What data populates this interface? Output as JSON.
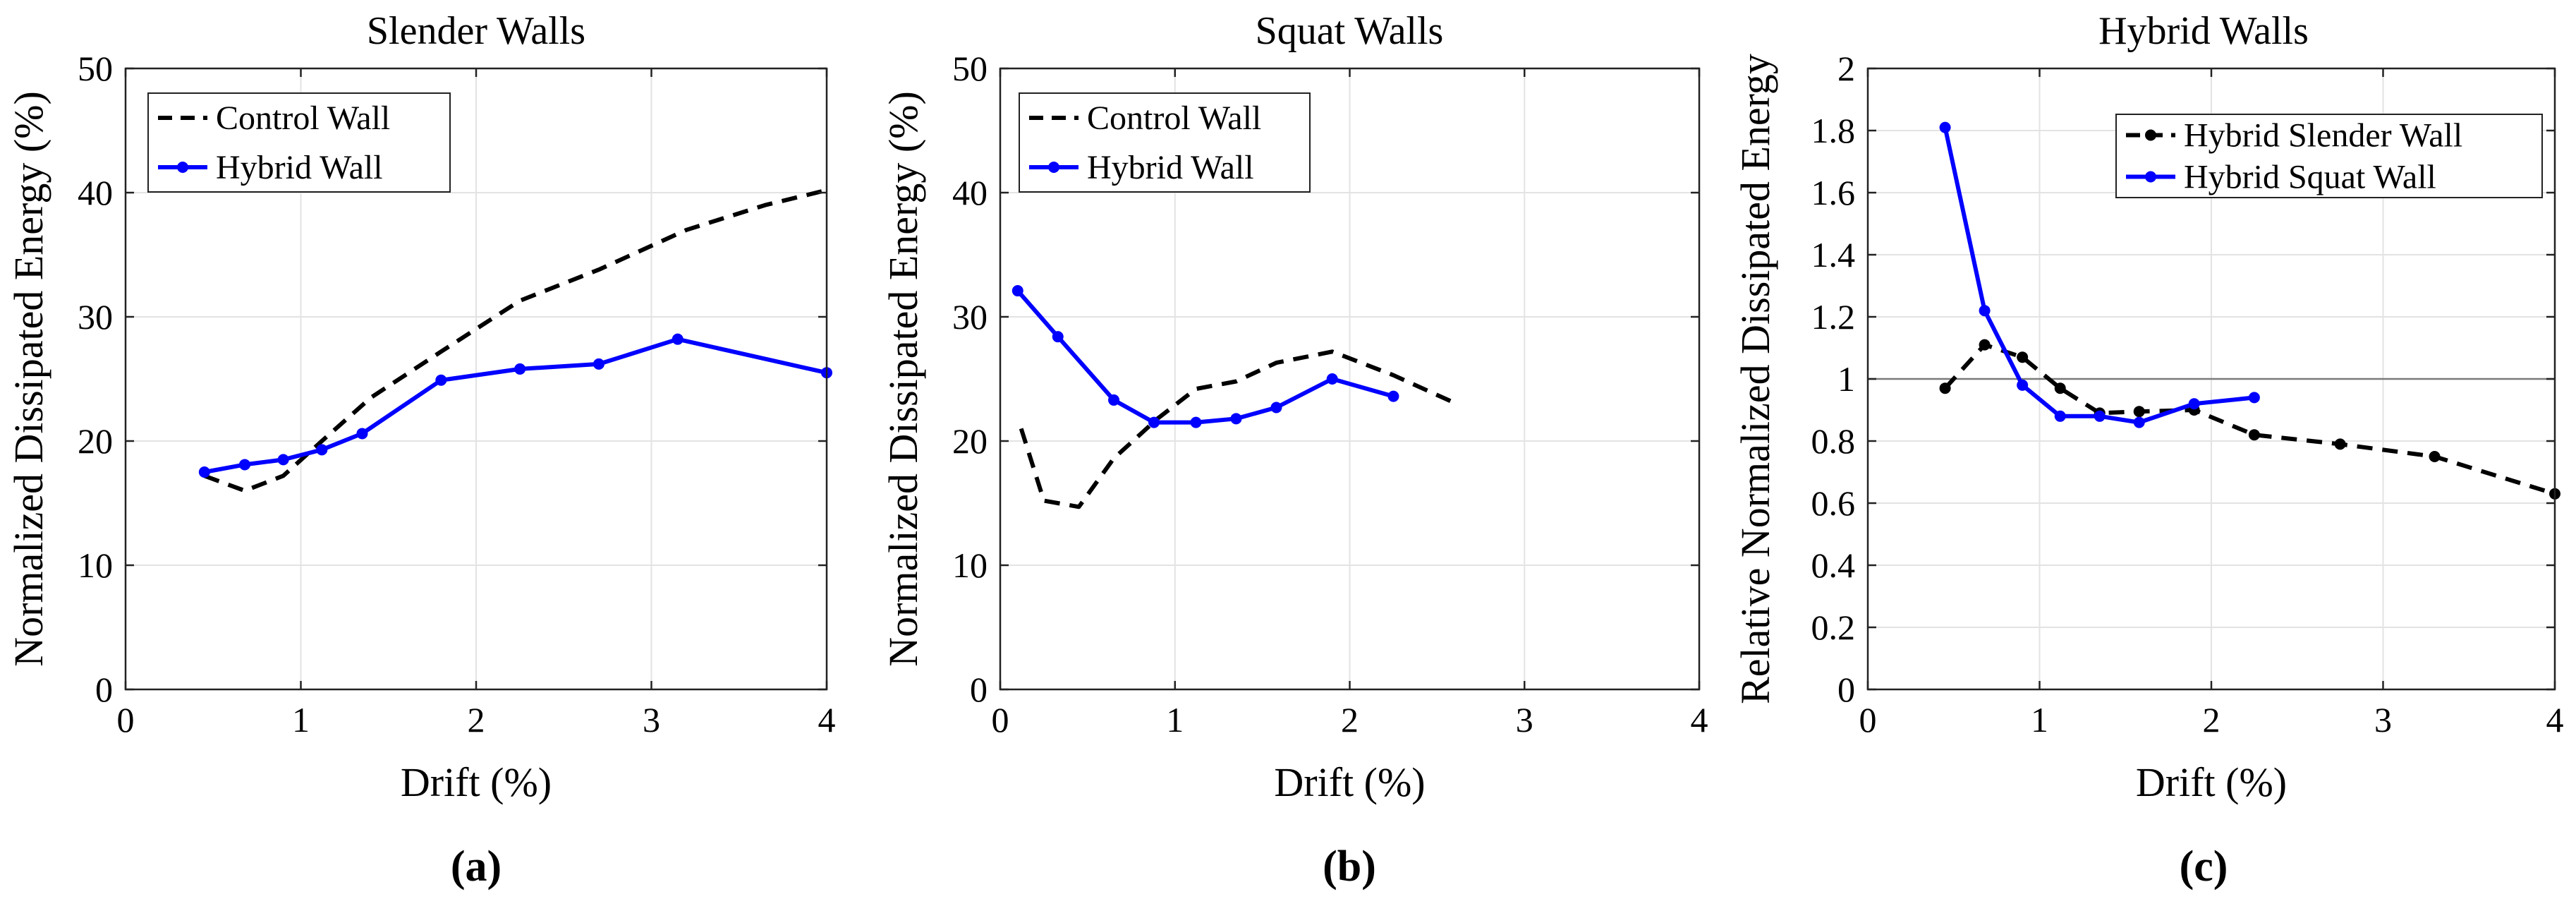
{
  "chart_data": [
    {
      "type": "line",
      "panel_label": "(a)",
      "title": "Slender Walls",
      "xlabel": "Drift (%)",
      "ylabel": "Normalized Dissipated Energy (%)",
      "xlim": [
        0,
        4
      ],
      "ylim": [
        0,
        50
      ],
      "xticks": [
        0,
        1,
        2,
        3,
        4
      ],
      "xtick_labels": [
        "0",
        "1",
        "2",
        "3",
        "4"
      ],
      "yticks": [
        0,
        10,
        20,
        30,
        40,
        50
      ],
      "ytick_labels": [
        "0",
        "10",
        "20",
        "30",
        "40",
        "50"
      ],
      "grid": true,
      "legend_position": "top-left",
      "series": [
        {
          "name": "Control Wall",
          "color": "#000000",
          "style": "dashed",
          "markers": false,
          "x": [
            0.45,
            0.68,
            0.9,
            1.12,
            1.4,
            1.8,
            2.25,
            2.7,
            3.2,
            3.65,
            4.0
          ],
          "y": [
            17.2,
            16.0,
            17.2,
            20.0,
            23.5,
            27.2,
            31.3,
            33.8,
            37.0,
            39.0,
            40.2
          ]
        },
        {
          "name": "Hybrid Wall",
          "color": "#0000ff",
          "style": "solid",
          "markers": true,
          "x": [
            0.45,
            0.68,
            0.9,
            1.12,
            1.35,
            1.8,
            2.25,
            2.7,
            3.15,
            4.0
          ],
          "y": [
            17.5,
            18.1,
            18.5,
            19.3,
            20.6,
            24.9,
            25.8,
            26.2,
            28.2,
            25.5
          ]
        }
      ]
    },
    {
      "type": "line",
      "panel_label": "(b)",
      "title": "Squat Walls",
      "xlabel": "Drift (%)",
      "ylabel": "Normalized Dissipated Energy (%)",
      "xlim": [
        0,
        4
      ],
      "ylim": [
        0,
        50
      ],
      "xticks": [
        0,
        1,
        2,
        3,
        4
      ],
      "xtick_labels": [
        "0",
        "1",
        "2",
        "3",
        "4"
      ],
      "yticks": [
        0,
        10,
        20,
        30,
        40,
        50
      ],
      "ytick_labels": [
        "0",
        "10",
        "20",
        "30",
        "40",
        "50"
      ],
      "grid": true,
      "legend_position": "top-left",
      "series": [
        {
          "name": "Control Wall",
          "color": "#000000",
          "style": "dashed",
          "markers": false,
          "x": [
            0.12,
            0.25,
            0.45,
            0.65,
            0.9,
            1.12,
            1.35,
            1.58,
            1.9,
            2.25,
            2.58
          ],
          "y": [
            21.0,
            15.2,
            14.7,
            18.6,
            21.8,
            24.2,
            24.8,
            26.3,
            27.2,
            25.3,
            23.2
          ]
        },
        {
          "name": "Hybrid Wall",
          "color": "#0000ff",
          "style": "solid",
          "markers": true,
          "x": [
            0.1,
            0.33,
            0.65,
            0.88,
            1.12,
            1.35,
            1.58,
            1.9,
            2.25
          ],
          "y": [
            32.1,
            28.4,
            23.3,
            21.5,
            21.5,
            21.8,
            22.7,
            25.0,
            23.6
          ]
        }
      ]
    },
    {
      "type": "line",
      "panel_label": "(c)",
      "title": "Hybrid Walls",
      "xlabel": "Drift (%)",
      "ylabel": "Relative Normalized Dissipated Energy",
      "xlim": [
        0,
        4
      ],
      "ylim": [
        0,
        2
      ],
      "xticks": [
        0,
        1,
        2,
        3,
        4
      ],
      "xtick_labels": [
        "0",
        "1",
        "2",
        "3",
        "4"
      ],
      "yticks": [
        0,
        0.2,
        0.4,
        0.6,
        0.8,
        1,
        1.2,
        1.4,
        1.6,
        1.8,
        2
      ],
      "ytick_labels": [
        "0",
        "0.2",
        "0.4",
        "0.6",
        "0.8",
        "1",
        "1.2",
        "1.4",
        "1.6",
        "1.8",
        "2"
      ],
      "grid": true,
      "reference_line_y": 1,
      "legend_position": "top-right",
      "series": [
        {
          "name": "Hybrid Slender Wall",
          "color": "#000000",
          "style": "dashed",
          "markers": true,
          "x": [
            0.45,
            0.68,
            0.9,
            1.12,
            1.35,
            1.58,
            1.9,
            2.25,
            2.75,
            3.3,
            4.0
          ],
          "y": [
            0.97,
            1.11,
            1.07,
            0.97,
            0.89,
            0.895,
            0.9,
            0.82,
            0.79,
            0.75,
            0.63
          ]
        },
        {
          "name": "Hybrid Squat Wall",
          "color": "#0000ff",
          "style": "solid",
          "markers": true,
          "x": [
            0.45,
            0.68,
            0.9,
            1.12,
            1.35,
            1.58,
            1.9,
            2.25
          ],
          "y": [
            1.81,
            1.22,
            0.98,
            0.88,
            0.88,
            0.86,
            0.92,
            0.94
          ]
        }
      ]
    }
  ]
}
